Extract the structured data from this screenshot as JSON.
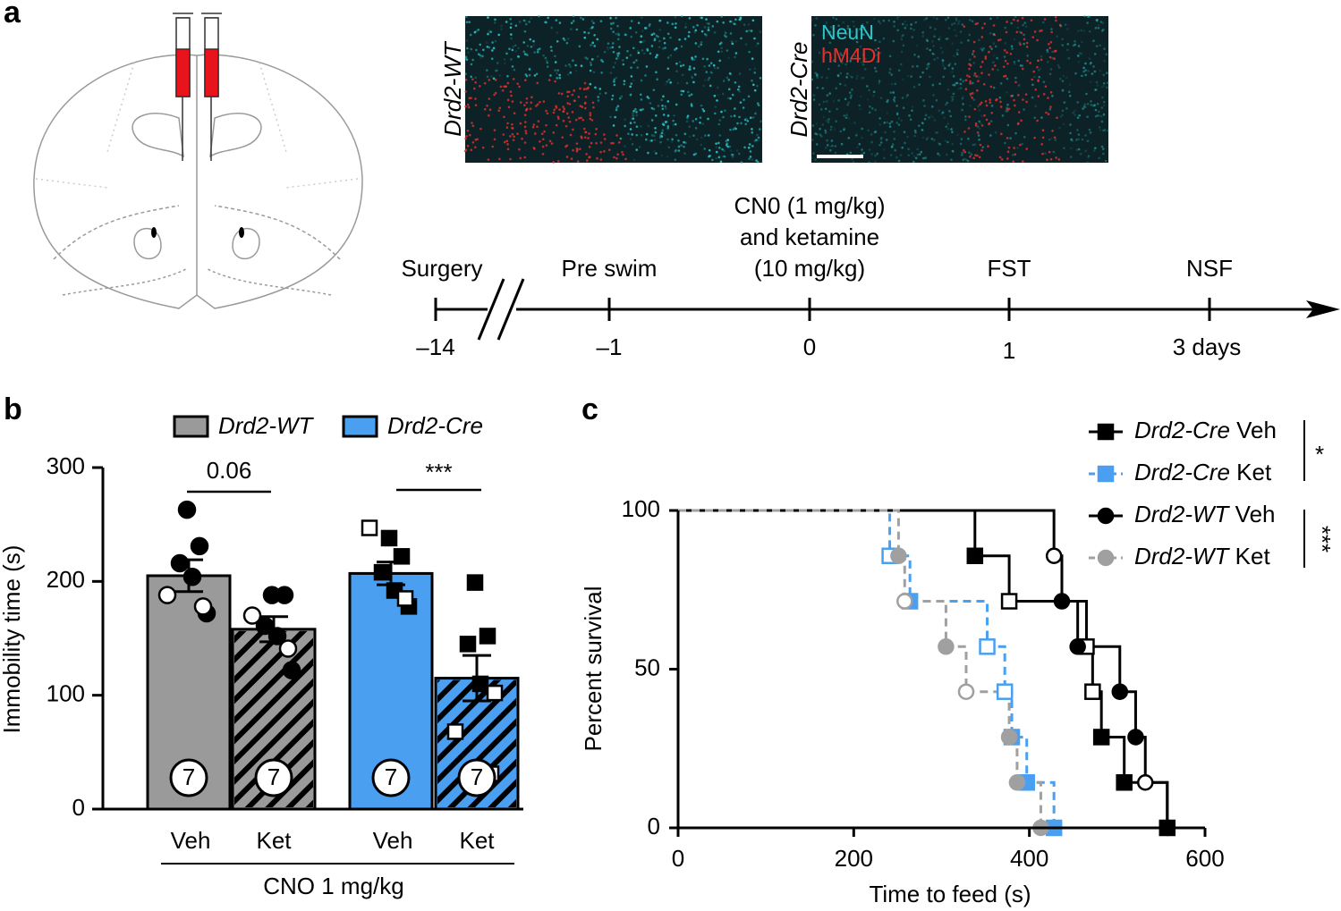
{
  "panel_labels": [
    "a",
    "b",
    "c"
  ],
  "micrographs": {
    "labels": [
      "Drd2-WT",
      "Drd2-Cre"
    ],
    "channels": [
      {
        "name": "NeuN",
        "color": "#2ac6c8"
      },
      {
        "name": "hM4Di",
        "color": "#e8302a"
      }
    ]
  },
  "timeline": {
    "events": [
      {
        "label": [
          "Surgery"
        ],
        "tick": "–14"
      },
      {
        "label": [
          "Pre swim"
        ],
        "tick": "–1"
      },
      {
        "label": [
          "CN0 (1 mg/kg)",
          "and ketamine",
          "(10 mg/kg)"
        ],
        "tick": "0"
      },
      {
        "label": [
          "FST"
        ],
        "tick": "1"
      },
      {
        "label": [
          "NSF"
        ],
        "tick": "3 days"
      }
    ]
  },
  "chart_data": [
    {
      "type": "bar",
      "categories": [
        "Veh",
        "Ket",
        "Veh",
        "Ket"
      ],
      "group_label": "CNO 1 mg/kg",
      "y_label": "Immobility time (s)",
      "ylim": [
        0,
        300
      ],
      "yticks": [
        0,
        100,
        200,
        300
      ],
      "hatch": [
        false,
        true,
        false,
        true
      ],
      "n_labels": [
        7,
        7,
        7,
        7
      ],
      "annotations": [
        "0.06",
        "***"
      ],
      "series": [
        {
          "name": "Drd2-WT",
          "color": "#9a9a9a",
          "marker": "circle",
          "values": [
            205,
            158,
            null,
            null
          ],
          "errors": [
            14,
            11,
            null,
            null
          ],
          "points_filled": [
            [
              263,
              231,
              216,
              204,
              172
            ],
            [
              188,
              188,
              161,
              152,
              122
            ],
            null,
            null
          ],
          "points_open": [
            [
              188,
              178
            ],
            [
              170,
              141
            ],
            null,
            null
          ]
        },
        {
          "name": "Drd2-Cre",
          "color": "#4a9ff0",
          "marker": "square",
          "values": [
            null,
            null,
            207,
            115
          ],
          "errors": [
            null,
            null,
            10,
            20
          ],
          "points_filled": [
            null,
            null,
            [
              238,
              222,
              208,
              192,
              178
            ],
            [
              199,
              152,
              145,
              110
            ]
          ],
          "points_open": [
            null,
            null,
            [
              247,
              185
            ],
            [
              102,
              68,
              31
            ]
          ]
        }
      ]
    },
    {
      "type": "line",
      "step": true,
      "x_label": "Time to feed (s)",
      "y_label": "Percent survival",
      "xlim": [
        0,
        600
      ],
      "xticks": [
        0,
        200,
        400,
        600
      ],
      "ylim": [
        0,
        100
      ],
      "yticks": [
        0,
        50,
        100
      ],
      "annotations": [
        "*",
        "***"
      ],
      "series": [
        {
          "name": "Drd2-Cre Veh",
          "color": "#000000",
          "dashed": false,
          "marker": "square",
          "x": [
            0,
            338,
            377,
            465,
            472,
            482,
            508,
            557
          ],
          "values": [
            100,
            85.7,
            71.4,
            57.1,
            42.9,
            28.6,
            14.3,
            0
          ],
          "filled": [
            null,
            true,
            false,
            false,
            false,
            true,
            true,
            true
          ]
        },
        {
          "name": "Drd2-Cre Ket",
          "color": "#4a9ff0",
          "dashed": true,
          "marker": "square",
          "x": [
            0,
            241,
            264,
            352,
            372,
            380,
            397,
            428
          ],
          "values": [
            100,
            85.7,
            71.4,
            57.1,
            42.9,
            28.6,
            14.3,
            0
          ],
          "filled": [
            null,
            false,
            true,
            false,
            false,
            true,
            true,
            true
          ]
        },
        {
          "name": "Drd2-WT Veh",
          "color": "#000000",
          "dashed": false,
          "marker": "circle",
          "x": [
            0,
            428,
            437,
            455,
            503,
            521,
            532,
            557
          ],
          "values": [
            100,
            85.7,
            71.4,
            57.1,
            42.9,
            28.6,
            14.3,
            0
          ],
          "filled": [
            null,
            false,
            true,
            true,
            true,
            true,
            false,
            true
          ]
        },
        {
          "name": "Drd2-WT Ket",
          "color": "#a0a0a0",
          "dashed": true,
          "marker": "circle",
          "x": [
            0,
            251,
            258,
            305,
            328,
            377,
            386,
            413
          ],
          "values": [
            100,
            85.7,
            71.4,
            57.1,
            42.9,
            28.6,
            14.3,
            0
          ],
          "filled": [
            null,
            true,
            false,
            true,
            false,
            true,
            true,
            true
          ]
        }
      ]
    }
  ]
}
